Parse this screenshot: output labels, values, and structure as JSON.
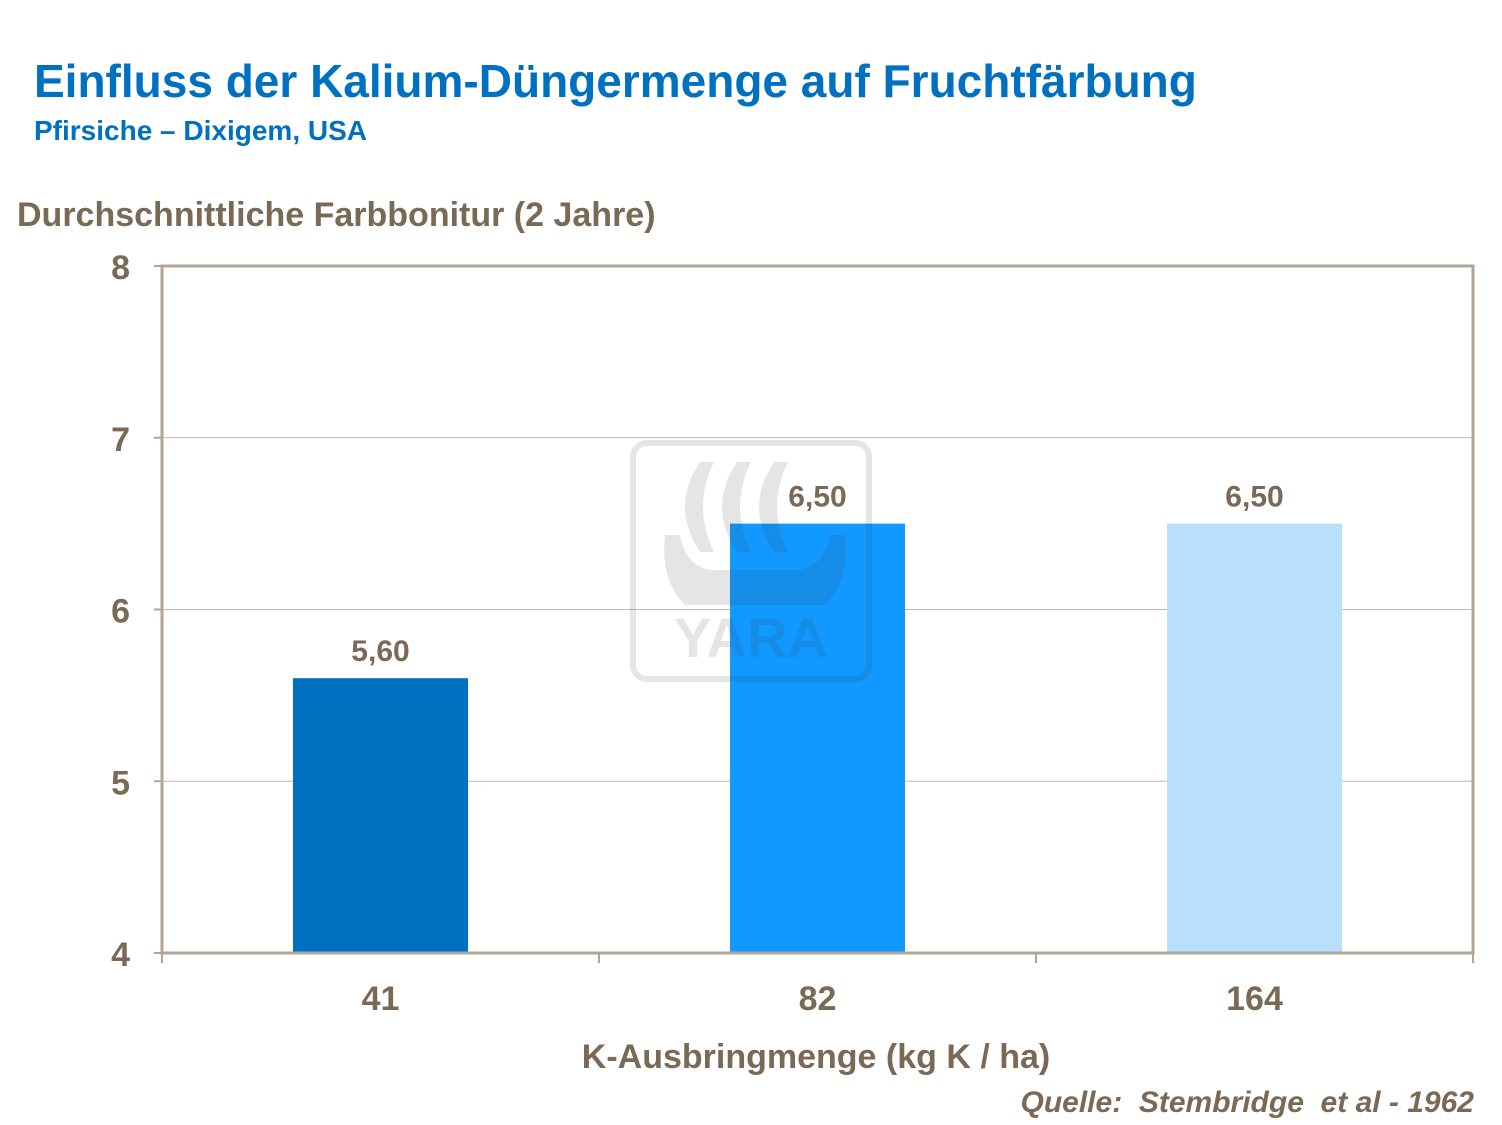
{
  "chart_data": {
    "type": "bar",
    "title": "Einfluss der Kalium-Düngermenge auf Fruchtfärbung",
    "subtitle": "Pfirsiche – Dixigem,  USA",
    "ylabel": "Durchschnittliche Farbbonitur (2 Jahre)",
    "xlabel": "K-Ausbringmenge (kg K / ha)",
    "source": "Quelle:  Stembridge  et al - 1962",
    "categories": [
      "41",
      "82",
      "164"
    ],
    "values": [
      5.6,
      6.5,
      6.5
    ],
    "data_labels": [
      "5,60",
      "6,50",
      "6,50"
    ],
    "colors": [
      "#0070c0",
      "#1199ff",
      "#b8dffc"
    ],
    "ylim": [
      4,
      8
    ],
    "yticks": [
      "4",
      "5",
      "6",
      "7",
      "8"
    ],
    "grid": true,
    "watermark": "YARA"
  }
}
